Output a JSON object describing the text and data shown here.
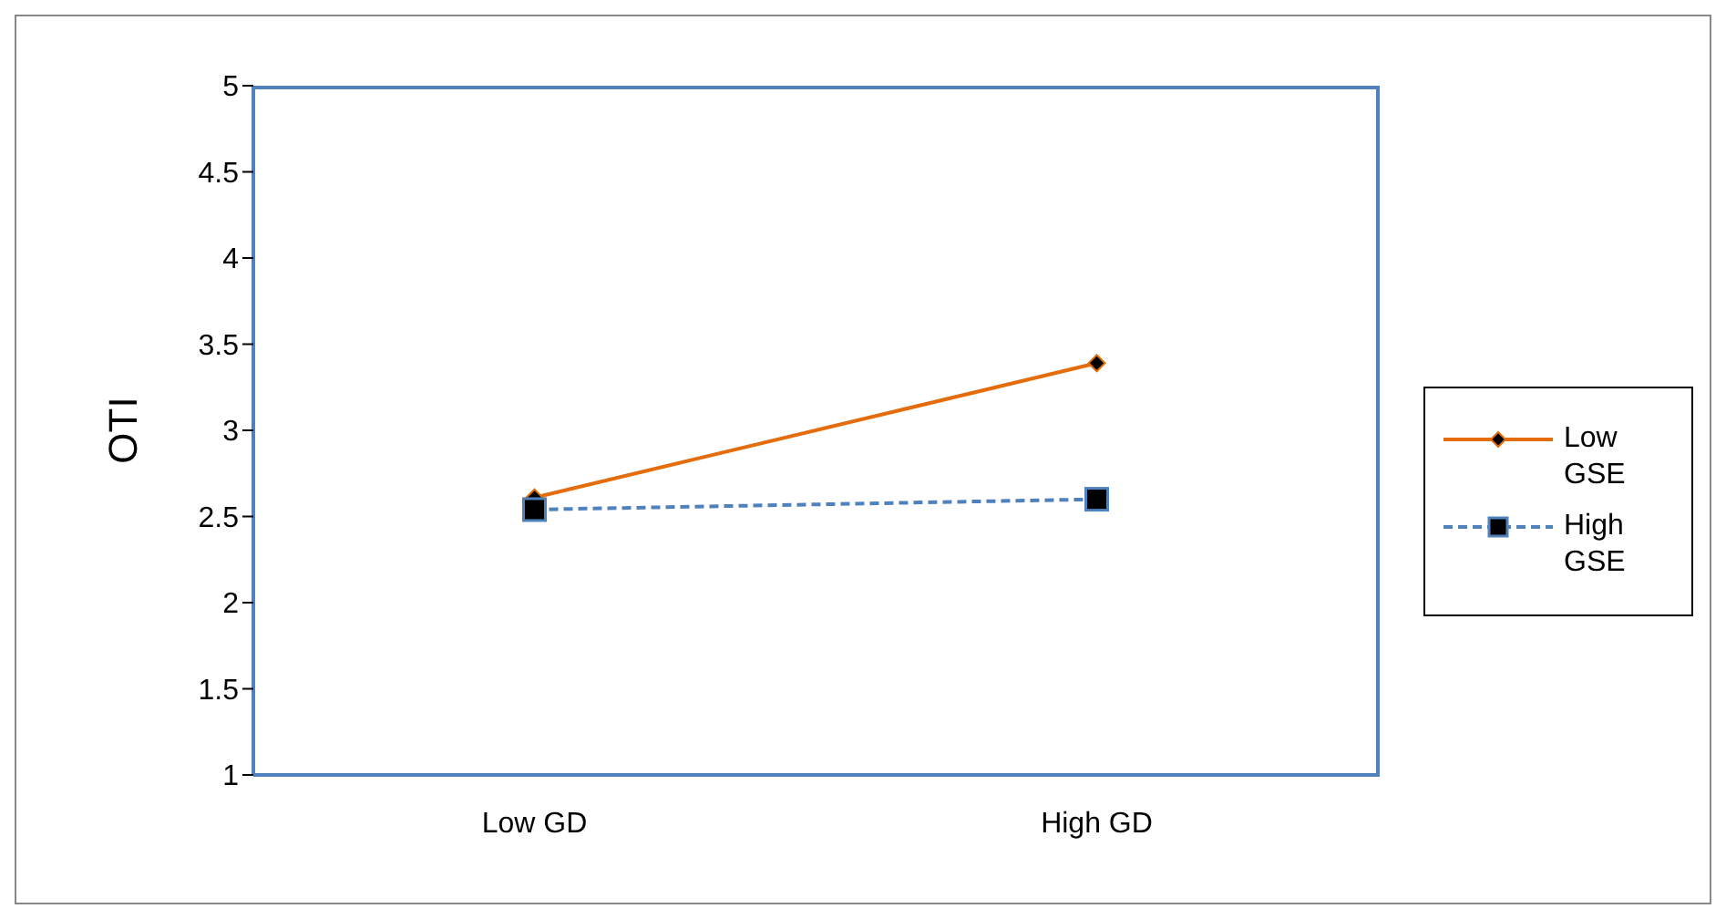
{
  "chart_data": {
    "type": "line",
    "ylabel": "OTI",
    "categories": [
      "Low GD",
      "High GD"
    ],
    "ylim": [
      1,
      5
    ],
    "yticks": [
      1,
      1.5,
      2,
      2.5,
      3,
      3.5,
      4,
      4.5,
      5
    ],
    "legend": "right",
    "series": [
      {
        "name": "Low GSE",
        "color": "#e46c0a",
        "values": [
          2.61,
          3.39
        ],
        "marker": "diamond",
        "line_style": "solid"
      },
      {
        "name": "High GSE",
        "color": "#4f81bd",
        "values": [
          2.54,
          2.6
        ],
        "marker": "square",
        "line_style": "dashed"
      }
    ]
  }
}
